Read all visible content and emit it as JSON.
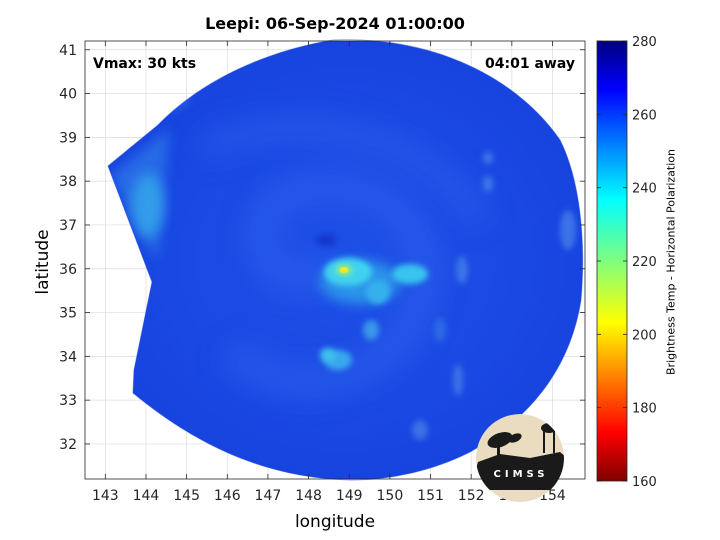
{
  "title": "Leepi: 06-Sep-2024 01:00:00",
  "annotations": {
    "vmax": "Vmax: 30 kts",
    "away": "04:01 away"
  },
  "axes": {
    "xlabel": "longitude",
    "ylabel": "latitude",
    "xlim": [
      142.5,
      154.8
    ],
    "ylim": [
      31.2,
      41.2
    ],
    "xticks": [
      "143",
      "144",
      "145",
      "146",
      "147",
      "148",
      "149",
      "150",
      "151",
      "152",
      "153",
      "154"
    ],
    "yticks": [
      "32",
      "33",
      "34",
      "35",
      "36",
      "37",
      "38",
      "39",
      "40",
      "41"
    ]
  },
  "colorbar": {
    "label": "Brightness Temp - Horizontal Polarization",
    "range": [
      160,
      280
    ],
    "ticks": [
      "160",
      "180",
      "200",
      "220",
      "240",
      "260",
      "280"
    ],
    "colormap": "jet"
  },
  "storm_center": {
    "lon": 148.9,
    "lat": 35.95,
    "min_temp": 200
  },
  "logo_text": "CIMSS",
  "chart_data": {
    "type": "heatmap",
    "title": "Leepi: 06-Sep-2024 01:00:00",
    "xlabel": "longitude",
    "ylabel": "latitude",
    "xlim": [
      142.5,
      154.8
    ],
    "ylim": [
      31.2,
      41.2
    ],
    "value_range": [
      160,
      280
    ],
    "colorbar_label": "Brightness Temp - Horizontal Polarization",
    "background_temp": 260,
    "features": [
      {
        "lon": 148.9,
        "lat": 35.95,
        "temp": 200
      },
      {
        "lon": 148.7,
        "lat": 35.9,
        "temp": 240
      },
      {
        "lon": 149.3,
        "lat": 35.8,
        "temp": 245
      },
      {
        "lon": 149.9,
        "lat": 35.8,
        "temp": 240
      },
      {
        "lon": 149.3,
        "lat": 35.3,
        "temp": 245
      },
      {
        "lon": 148.5,
        "lat": 33.9,
        "temp": 245
      },
      {
        "lon": 149.0,
        "lat": 33.9,
        "temp": 245
      },
      {
        "lon": 143.8,
        "lat": 37.5,
        "temp": 240
      }
    ]
  }
}
